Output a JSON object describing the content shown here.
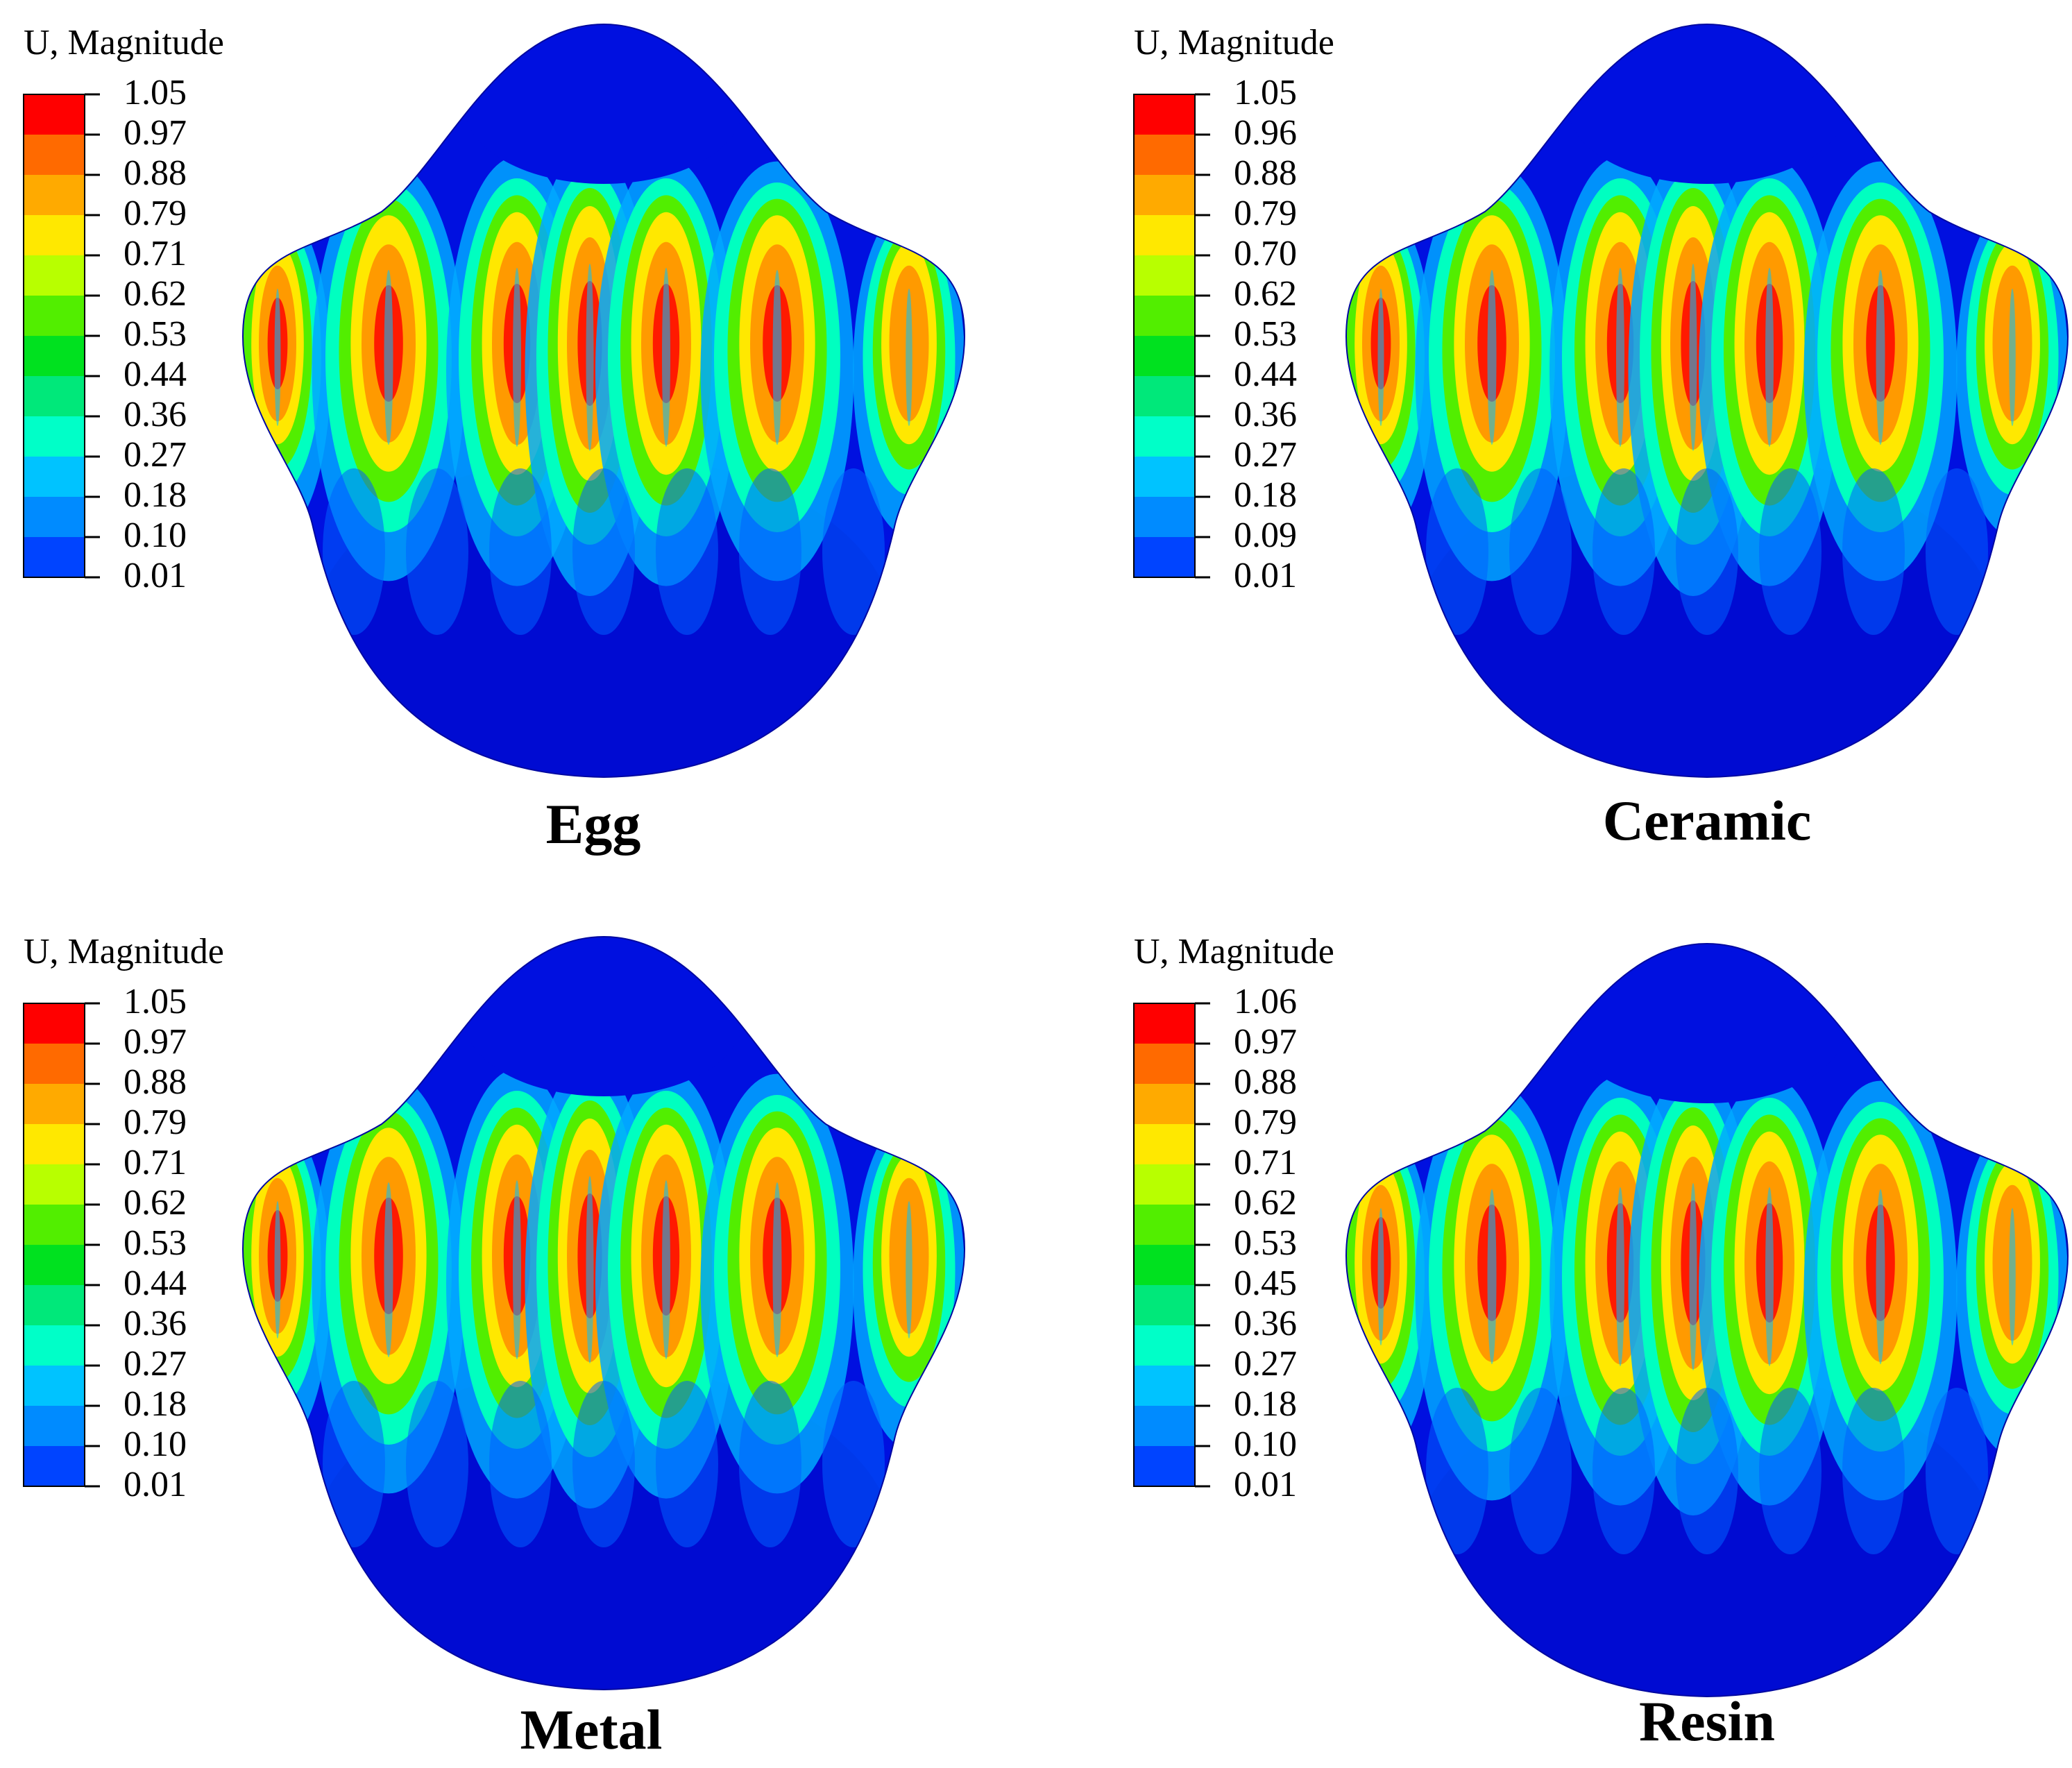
{
  "palette": [
    "#0000ff",
    "#0044ff",
    "#008bff",
    "#00c3ff",
    "#00ffc8",
    "#00e87a",
    "#00e11f",
    "#52ee00",
    "#b8ff00",
    "#ffe800",
    "#ffaa00",
    "#ff6a00",
    "#ff0000"
  ],
  "panels": [
    {
      "legend_title": "U, Magnitude",
      "ticks": [
        "1.05",
        "0.97",
        "0.88",
        "0.79",
        "0.71",
        "0.62",
        "0.53",
        "0.44",
        "0.36",
        "0.27",
        "0.18",
        "0.10",
        "0.01"
      ],
      "caption": "Egg"
    },
    {
      "legend_title": "U, Magnitude",
      "ticks": [
        "1.05",
        "0.96",
        "0.88",
        "0.79",
        "0.70",
        "0.62",
        "0.53",
        "0.44",
        "0.36",
        "0.27",
        "0.18",
        "0.09",
        "0.01"
      ],
      "caption": "Ceramic"
    },
    {
      "legend_title": "U, Magnitude",
      "ticks": [
        "1.05",
        "0.97",
        "0.88",
        "0.79",
        "0.71",
        "0.62",
        "0.53",
        "0.44",
        "0.36",
        "0.27",
        "0.18",
        "0.10",
        "0.01"
      ],
      "caption": "Metal"
    },
    {
      "legend_title": "U, Magnitude",
      "ticks": [
        "1.06",
        "0.97",
        "0.88",
        "0.79",
        "0.71",
        "0.62",
        "0.53",
        "0.45",
        "0.36",
        "0.27",
        "0.18",
        "0.10",
        "0.01"
      ],
      "caption": "Resin"
    }
  ]
}
